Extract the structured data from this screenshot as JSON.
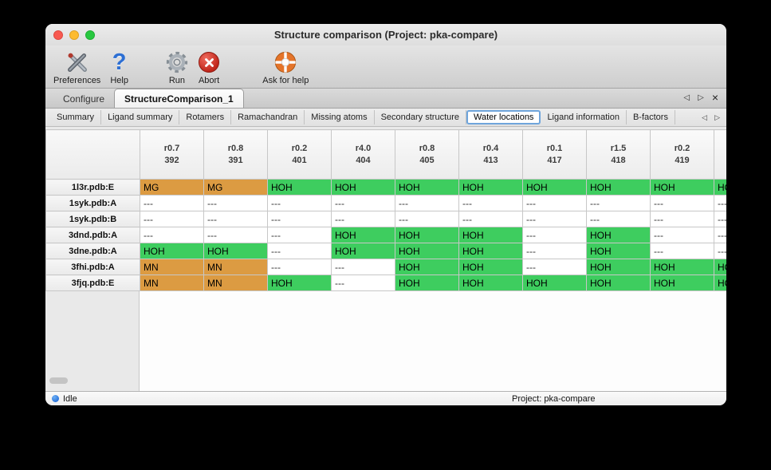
{
  "window": {
    "title": "Structure comparison (Project: pka-compare)"
  },
  "icons": {
    "prev": "◁",
    "next": "▷",
    "close": "×",
    "question": "?"
  },
  "toolbar": {
    "items": [
      {
        "label": "Preferences",
        "icon": "tools"
      },
      {
        "label": "Help",
        "icon": "question"
      },
      {
        "label": "Run",
        "icon": "gear"
      },
      {
        "label": "Abort",
        "icon": "abort"
      },
      {
        "label": "Ask for help",
        "icon": "lifering"
      }
    ]
  },
  "tabs": {
    "items": [
      {
        "label": "Configure",
        "active": false
      },
      {
        "label": "StructureComparison_1",
        "active": true
      }
    ]
  },
  "subtabs": {
    "items": [
      "Summary",
      "Ligand summary",
      "Rotamers",
      "Ramachandran",
      "Missing atoms",
      "Secondary structure",
      "Water locations",
      "Ligand information",
      "B-factors"
    ],
    "selected": "Water locations"
  },
  "colors": {
    "water": "#3ecd5f",
    "metal": "#dc9b42"
  },
  "table": {
    "columns": [
      {
        "line1": "r0.7",
        "line2": "392"
      },
      {
        "line1": "r0.8",
        "line2": "391"
      },
      {
        "line1": "r0.2",
        "line2": "401"
      },
      {
        "line1": "r4.0",
        "line2": "404"
      },
      {
        "line1": "r0.8",
        "line2": "405"
      },
      {
        "line1": "r0.4",
        "line2": "413"
      },
      {
        "line1": "r0.1",
        "line2": "417"
      },
      {
        "line1": "r1.5",
        "line2": "418"
      },
      {
        "line1": "r0.2",
        "line2": "419"
      },
      {
        "line1": "",
        "line2": ""
      }
    ],
    "rows": [
      {
        "label": "1l3r.pdb:E",
        "cells": [
          {
            "t": "MG",
            "k": "metal"
          },
          {
            "t": "MG",
            "k": "metal"
          },
          {
            "t": "HOH",
            "k": "water"
          },
          {
            "t": "HOH",
            "k": "water"
          },
          {
            "t": "HOH",
            "k": "water"
          },
          {
            "t": "HOH",
            "k": "water"
          },
          {
            "t": "HOH",
            "k": "water"
          },
          {
            "t": "HOH",
            "k": "water"
          },
          {
            "t": "HOH",
            "k": "water"
          },
          {
            "t": "HOH",
            "k": "water"
          }
        ]
      },
      {
        "label": "1syk.pdb:A",
        "cells": [
          {
            "t": "---",
            "k": "none"
          },
          {
            "t": "---",
            "k": "none"
          },
          {
            "t": "---",
            "k": "none"
          },
          {
            "t": "---",
            "k": "none"
          },
          {
            "t": "---",
            "k": "none"
          },
          {
            "t": "---",
            "k": "none"
          },
          {
            "t": "---",
            "k": "none"
          },
          {
            "t": "---",
            "k": "none"
          },
          {
            "t": "---",
            "k": "none"
          },
          {
            "t": "---",
            "k": "none"
          }
        ]
      },
      {
        "label": "1syk.pdb:B",
        "cells": [
          {
            "t": "---",
            "k": "none"
          },
          {
            "t": "---",
            "k": "none"
          },
          {
            "t": "---",
            "k": "none"
          },
          {
            "t": "---",
            "k": "none"
          },
          {
            "t": "---",
            "k": "none"
          },
          {
            "t": "---",
            "k": "none"
          },
          {
            "t": "---",
            "k": "none"
          },
          {
            "t": "---",
            "k": "none"
          },
          {
            "t": "---",
            "k": "none"
          },
          {
            "t": "---",
            "k": "none"
          }
        ]
      },
      {
        "label": "3dnd.pdb:A",
        "cells": [
          {
            "t": "---",
            "k": "none"
          },
          {
            "t": "---",
            "k": "none"
          },
          {
            "t": "---",
            "k": "none"
          },
          {
            "t": "HOH",
            "k": "water"
          },
          {
            "t": "HOH",
            "k": "water"
          },
          {
            "t": "HOH",
            "k": "water"
          },
          {
            "t": "---",
            "k": "none"
          },
          {
            "t": "HOH",
            "k": "water"
          },
          {
            "t": "---",
            "k": "none"
          },
          {
            "t": "---",
            "k": "none"
          }
        ]
      },
      {
        "label": "3dne.pdb:A",
        "cells": [
          {
            "t": "HOH",
            "k": "water"
          },
          {
            "t": "HOH",
            "k": "water"
          },
          {
            "t": "---",
            "k": "none"
          },
          {
            "t": "HOH",
            "k": "water"
          },
          {
            "t": "HOH",
            "k": "water"
          },
          {
            "t": "HOH",
            "k": "water"
          },
          {
            "t": "---",
            "k": "none"
          },
          {
            "t": "HOH",
            "k": "water"
          },
          {
            "t": "---",
            "k": "none"
          },
          {
            "t": "---",
            "k": "none"
          }
        ]
      },
      {
        "label": "3fhi.pdb:A",
        "cells": [
          {
            "t": "MN",
            "k": "metal"
          },
          {
            "t": "MN",
            "k": "metal"
          },
          {
            "t": "---",
            "k": "none"
          },
          {
            "t": "---",
            "k": "none"
          },
          {
            "t": "HOH",
            "k": "water"
          },
          {
            "t": "HOH",
            "k": "water"
          },
          {
            "t": "---",
            "k": "none"
          },
          {
            "t": "HOH",
            "k": "water"
          },
          {
            "t": "HOH",
            "k": "water"
          },
          {
            "t": "HOH",
            "k": "water"
          }
        ]
      },
      {
        "label": "3fjq.pdb:E",
        "cells": [
          {
            "t": "MN",
            "k": "metal"
          },
          {
            "t": "MN",
            "k": "metal"
          },
          {
            "t": "HOH",
            "k": "water"
          },
          {
            "t": "---",
            "k": "none"
          },
          {
            "t": "HOH",
            "k": "water"
          },
          {
            "t": "HOH",
            "k": "water"
          },
          {
            "t": "HOH",
            "k": "water"
          },
          {
            "t": "HOH",
            "k": "water"
          },
          {
            "t": "HOH",
            "k": "water"
          },
          {
            "t": "HOH",
            "k": "water"
          }
        ]
      }
    ]
  },
  "statusbar": {
    "status": "Idle",
    "project": "Project: pka-compare"
  }
}
